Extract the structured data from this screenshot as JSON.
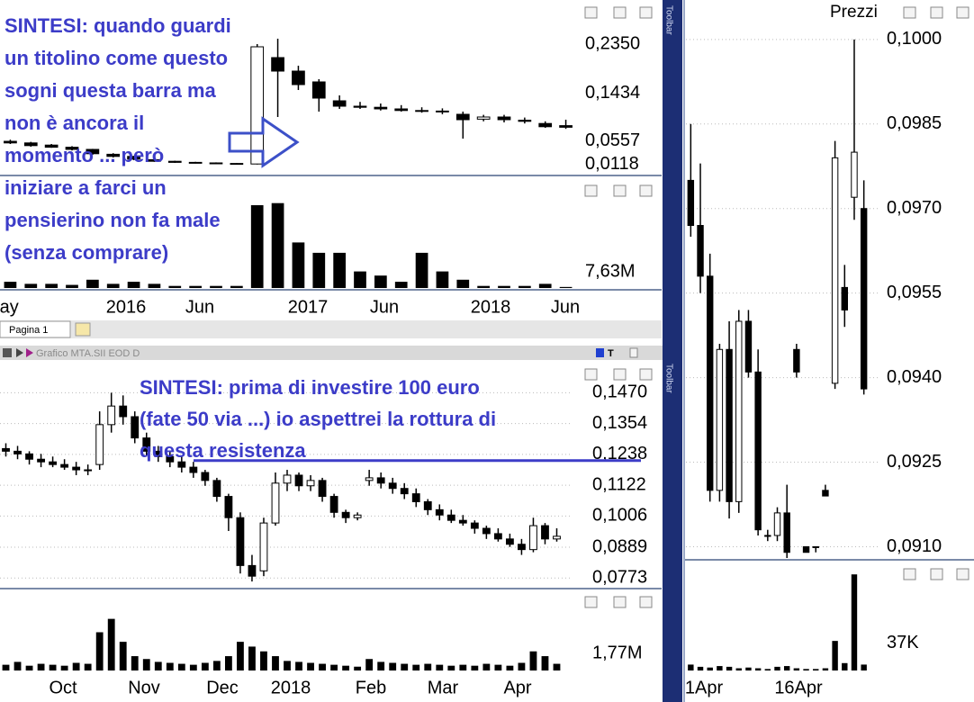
{
  "window": {
    "tab": "Pagina 1",
    "bottom_title": "Grafico MTA.SII EOD D",
    "toolbar": "Toolbar",
    "right_title": "Prezzi"
  },
  "chart_data": [
    {
      "type": "candlestick",
      "up_color": "#ffffff",
      "down_color": "#000000",
      "open": [
        0.055,
        0.052,
        0.048,
        0.044,
        0.04,
        0.031,
        0.027,
        0.021,
        0.018,
        0.016,
        0.015,
        0.014,
        0.013,
        0.21,
        0.185,
        0.165,
        0.13,
        0.12,
        0.118,
        0.115,
        0.112,
        0.111,
        0.105,
        0.096,
        0.1,
        0.094,
        0.088,
        0.084
      ],
      "high": [
        0.058,
        0.054,
        0.05,
        0.046,
        0.041,
        0.033,
        0.028,
        0.023,
        0.019,
        0.017,
        0.016,
        0.015,
        0.235,
        0.245,
        0.195,
        0.17,
        0.14,
        0.128,
        0.125,
        0.122,
        0.118,
        0.116,
        0.11,
        0.104,
        0.104,
        0.099,
        0.092,
        0.095
      ],
      "low": [
        0.05,
        0.045,
        0.043,
        0.038,
        0.03,
        0.025,
        0.02,
        0.017,
        0.015,
        0.014,
        0.013,
        0.012,
        0.012,
        0.1,
        0.15,
        0.11,
        0.115,
        0.115,
        0.112,
        0.11,
        0.108,
        0.105,
        0.06,
        0.092,
        0.09,
        0.088,
        0.08,
        0.078
      ],
      "close": [
        0.052,
        0.047,
        0.044,
        0.04,
        0.032,
        0.027,
        0.022,
        0.018,
        0.016,
        0.015,
        0.014,
        0.013,
        0.23,
        0.185,
        0.16,
        0.135,
        0.12,
        0.118,
        0.115,
        0.112,
        0.111,
        0.11,
        0.095,
        0.1,
        0.095,
        0.092,
        0.082,
        0.081
      ],
      "ylim": [
        0,
        0.27
      ],
      "yticks": [
        {
          "value": 0.235,
          "label": "0,2350"
        },
        {
          "value": 0.1434,
          "label": "0,1434"
        },
        {
          "value": 0.0557,
          "label": "0,0557"
        },
        {
          "value": 0.0118,
          "label": "0,0118"
        }
      ],
      "grid": false,
      "annotation": [
        "SINTESI: quando guardi",
        "un titolino come questo",
        "sogni questa barra ma",
        "non è ancora il",
        "momento ... però",
        "iniziare a farci un",
        "pensierino non fa male",
        "(senza comprare)"
      ]
    },
    {
      "type": "bar",
      "color": "#000000",
      "values": [
        3000000,
        2000000,
        2000000,
        1500000,
        4000000,
        2000000,
        3000000,
        2000000,
        1000000,
        1000000,
        1000000,
        1000000,
        40000000,
        41000000,
        22000000,
        17000000,
        17000000,
        8000000,
        6000000,
        3000000,
        17000000,
        8000000,
        4000000,
        1000000,
        1000000,
        1000000,
        2000000,
        500000
      ],
      "ylim": [
        0,
        50000000
      ],
      "yticks": [
        {
          "value": 7630000,
          "label": "7,63M"
        }
      ],
      "grid": false,
      "x_axis_labels": [
        "lay",
        "2016",
        "Jun",
        "2017",
        "Jun",
        "2018",
        "Jun"
      ]
    },
    {
      "type": "candlestick",
      "up_color": "#ffffff",
      "down_color": "#000000",
      "open": [
        0.126,
        0.125,
        0.124,
        0.122,
        0.121,
        0.12,
        0.119,
        0.118,
        0.12,
        0.135,
        0.142,
        0.138,
        0.13,
        0.125,
        0.123,
        0.121,
        0.119,
        0.117,
        0.114,
        0.108,
        0.1,
        0.082,
        0.08,
        0.098,
        0.113,
        0.116,
        0.112,
        0.114,
        0.108,
        0.102,
        0.1,
        0.114,
        0.115,
        0.113,
        0.111,
        0.109,
        0.106,
        0.103,
        0.101,
        0.099,
        0.098,
        0.096,
        0.094,
        0.092,
        0.09,
        0.088,
        0.097,
        0.092
      ],
      "high": [
        0.128,
        0.127,
        0.125,
        0.124,
        0.123,
        0.122,
        0.121,
        0.12,
        0.14,
        0.147,
        0.146,
        0.14,
        0.132,
        0.127,
        0.125,
        0.123,
        0.121,
        0.118,
        0.115,
        0.109,
        0.102,
        0.086,
        0.1,
        0.117,
        0.118,
        0.117,
        0.116,
        0.115,
        0.109,
        0.103,
        0.102,
        0.118,
        0.117,
        0.115,
        0.113,
        0.111,
        0.107,
        0.105,
        0.103,
        0.101,
        0.099,
        0.097,
        0.096,
        0.094,
        0.092,
        0.1,
        0.098,
        0.096
      ],
      "low": [
        0.123,
        0.122,
        0.12,
        0.119,
        0.119,
        0.118,
        0.116,
        0.116,
        0.118,
        0.132,
        0.135,
        0.128,
        0.123,
        0.121,
        0.119,
        0.117,
        0.115,
        0.112,
        0.106,
        0.095,
        0.079,
        0.076,
        0.078,
        0.097,
        0.11,
        0.11,
        0.11,
        0.106,
        0.1,
        0.098,
        0.099,
        0.112,
        0.111,
        0.109,
        0.107,
        0.104,
        0.101,
        0.099,
        0.098,
        0.097,
        0.094,
        0.092,
        0.091,
        0.089,
        0.086,
        0.087,
        0.09,
        0.091
      ],
      "close": [
        0.125,
        0.124,
        0.122,
        0.121,
        0.12,
        0.119,
        0.118,
        0.118,
        0.135,
        0.142,
        0.138,
        0.13,
        0.125,
        0.123,
        0.121,
        0.119,
        0.117,
        0.114,
        0.108,
        0.1,
        0.082,
        0.078,
        0.098,
        0.113,
        0.116,
        0.112,
        0.114,
        0.108,
        0.102,
        0.1,
        0.101,
        0.115,
        0.113,
        0.111,
        0.109,
        0.106,
        0.103,
        0.101,
        0.099,
        0.098,
        0.096,
        0.094,
        0.092,
        0.09,
        0.088,
        0.097,
        0.092,
        0.093
      ],
      "ylim": [
        0.074,
        0.16
      ],
      "yticks": [
        {
          "value": 0.147,
          "label": "0,1470"
        },
        {
          "value": 0.1354,
          "label": "0,1354"
        },
        {
          "value": 0.1238,
          "label": "0,1238"
        },
        {
          "value": 0.1122,
          "label": "0,1122"
        },
        {
          "value": 0.1006,
          "label": "0,1006"
        },
        {
          "value": 0.0889,
          "label": "0,0889"
        },
        {
          "value": 0.0773,
          "label": "0,0773"
        }
      ],
      "grid": true,
      "resistance": 0.1215,
      "annotation": [
        "SINTESI: prima di investire 100 euro",
        "(fate 50 via ...) io aspettrei la rottura di",
        "questa resistenza"
      ]
    },
    {
      "type": "bar",
      "color": "#000000",
      "values": [
        600000,
        900000,
        500000,
        700000,
        600000,
        500000,
        800000,
        700000,
        4000000,
        5400000,
        3000000,
        1500000,
        1200000,
        900000,
        800000,
        700000,
        600000,
        800000,
        1000000,
        1500000,
        3000000,
        2500000,
        2000000,
        1500000,
        1000000,
        900000,
        800000,
        700000,
        600000,
        500000,
        400000,
        1200000,
        900000,
        800000,
        700000,
        600000,
        700000,
        600000,
        500000,
        600000,
        500000,
        700000,
        600000,
        500000,
        800000,
        2000000,
        1500000,
        700000
      ],
      "ylim": [
        0,
        8000000
      ],
      "yticks": [
        {
          "value": 1770000,
          "label": "1,77M"
        }
      ],
      "grid": false,
      "x_axis_labels": [
        "Oct",
        "Nov",
        "Dec",
        "2018",
        "Feb",
        "Mar",
        "Apr"
      ]
    },
    {
      "type": "candlestick",
      "up_color": "#ffffff",
      "down_color": "#000000",
      "open": [
        0.0975,
        0.0967,
        0.0958,
        0.092,
        0.0945,
        0.0918,
        0.095,
        0.0941,
        0.0912,
        0.0912,
        0.0916,
        0.0945,
        0.091,
        0.091,
        0.092,
        0.0939,
        0.0956,
        0.0972,
        0.097
      ],
      "high": [
        0.0985,
        0.0978,
        0.0962,
        0.0946,
        0.095,
        0.0952,
        0.0952,
        0.0945,
        0.0913,
        0.0917,
        0.0921,
        0.0946,
        0.091,
        0.091,
        0.0921,
        0.0982,
        0.096,
        0.1,
        0.0975
      ],
      "low": [
        0.0965,
        0.0955,
        0.0918,
        0.0918,
        0.0915,
        0.0916,
        0.094,
        0.0912,
        0.0911,
        0.0911,
        0.0908,
        0.094,
        0.0909,
        0.0909,
        0.0919,
        0.0938,
        0.0949,
        0.0968,
        0.0937
      ],
      "close": [
        0.0967,
        0.0958,
        0.092,
        0.0945,
        0.0918,
        0.095,
        0.0941,
        0.0913,
        0.0912,
        0.0916,
        0.0909,
        0.0941,
        0.0909,
        0.091,
        0.0919,
        0.0979,
        0.0952,
        0.098,
        0.0938
      ],
      "ylim": [
        0.0908,
        0.1007
      ],
      "yticks": [
        {
          "value": 0.1,
          "label": "0,1000"
        },
        {
          "value": 0.0985,
          "label": "0,0985"
        },
        {
          "value": 0.097,
          "label": "0,0970"
        },
        {
          "value": 0.0955,
          "label": "0,0955"
        },
        {
          "value": 0.094,
          "label": "0,0940"
        },
        {
          "value": 0.0925,
          "label": "0,0925"
        },
        {
          "value": 0.091,
          "label": "0,0910"
        }
      ],
      "grid": true
    },
    {
      "type": "bar",
      "color": "#000000",
      "values": [
        8000,
        5000,
        4000,
        6000,
        5000,
        3000,
        4000,
        3000,
        2000,
        5000,
        6000,
        3000,
        2000,
        2000,
        3000,
        40000,
        10000,
        130000,
        8000
      ],
      "ylim": [
        0,
        140000
      ],
      "yticks": [
        {
          "value": 37000,
          "label": "37K"
        }
      ],
      "grid": false,
      "x_axis_labels": [
        "1Apr",
        "16Apr"
      ]
    }
  ]
}
